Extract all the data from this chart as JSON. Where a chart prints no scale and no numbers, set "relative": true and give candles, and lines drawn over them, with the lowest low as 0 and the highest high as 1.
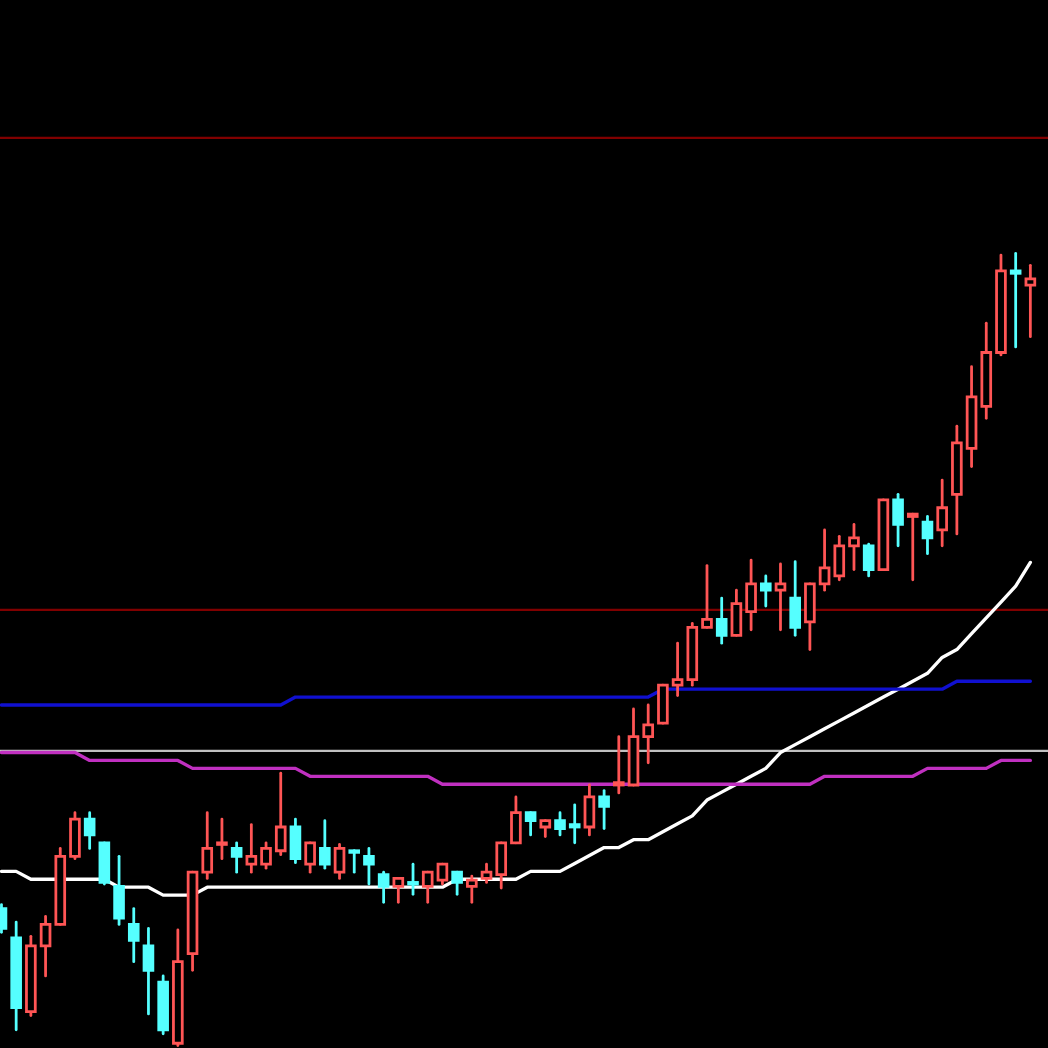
{
  "chart_data": {
    "type": "candlestick",
    "relative": true,
    "categories": [
      null,
      null,
      null,
      null,
      null,
      null,
      null,
      null,
      null,
      null,
      null,
      null,
      null,
      null,
      null,
      null,
      null,
      null,
      null,
      null,
      null,
      null,
      null,
      null,
      null,
      null,
      null,
      null,
      null,
      null,
      null,
      null,
      null,
      null,
      null,
      null,
      null,
      null,
      null,
      null,
      null,
      null,
      null,
      null,
      null,
      null,
      null,
      null,
      null,
      null,
      null,
      null,
      null,
      null,
      null,
      null,
      null,
      null,
      null,
      null,
      null,
      null,
      null,
      null,
      null,
      null,
      null,
      null,
      null,
      null,
      null
    ],
    "ohlc": [
      [
        0.173,
        0.178,
        0.143,
        0.148
      ],
      [
        0.136,
        0.156,
        0.02,
        0.048
      ],
      [
        0.043,
        0.138,
        0.038,
        0.126
      ],
      [
        0.126,
        0.163,
        0.088,
        0.153
      ],
      [
        0.153,
        0.249,
        0.153,
        0.239
      ],
      [
        0.239,
        0.294,
        0.236,
        0.286
      ],
      [
        0.286,
        0.294,
        0.249,
        0.266
      ],
      [
        0.256,
        0.256,
        0.204,
        0.206
      ],
      [
        0.201,
        0.239,
        0.153,
        0.161
      ],
      [
        0.153,
        0.173,
        0.106,
        0.133
      ],
      [
        0.126,
        0.148,
        0.04,
        0.095
      ],
      [
        0.08,
        0.088,
        0.015,
        0.02
      ],
      [
        0.003,
        0.146,
        0.0,
        0.106
      ],
      [
        0.116,
        0.219,
        0.095,
        0.219
      ],
      [
        0.219,
        0.294,
        0.211,
        0.249
      ],
      [
        0.254,
        0.286,
        0.236,
        0.256
      ],
      [
        0.249,
        0.256,
        0.219,
        0.239
      ],
      [
        0.229,
        0.279,
        0.219,
        0.239
      ],
      [
        0.229,
        0.256,
        0.224,
        0.249
      ],
      [
        0.246,
        0.344,
        0.241,
        0.276
      ],
      [
        0.276,
        0.286,
        0.231,
        0.236
      ],
      [
        0.229,
        0.256,
        0.219,
        0.256
      ],
      [
        0.249,
        0.284,
        0.224,
        0.229
      ],
      [
        0.219,
        0.254,
        0.211,
        0.249
      ],
      [
        0.246,
        0.246,
        0.219,
        0.244
      ],
      [
        0.239,
        0.249,
        0.204,
        0.229
      ],
      [
        0.216,
        0.219,
        0.181,
        0.201
      ],
      [
        0.201,
        0.211,
        0.181,
        0.211
      ],
      [
        0.206,
        0.229,
        0.191,
        0.204
      ],
      [
        0.201,
        0.219,
        0.181,
        0.219
      ],
      [
        0.209,
        0.229,
        0.204,
        0.229
      ],
      [
        0.219,
        0.219,
        0.191,
        0.206
      ],
      [
        0.201,
        0.214,
        0.181,
        0.209
      ],
      [
        0.211,
        0.229,
        0.206,
        0.219
      ],
      [
        0.216,
        0.256,
        0.199,
        0.256
      ],
      [
        0.256,
        0.314,
        0.256,
        0.294
      ],
      [
        0.294,
        0.294,
        0.266,
        0.284
      ],
      [
        0.276,
        0.284,
        0.264,
        0.284
      ],
      [
        0.284,
        0.294,
        0.266,
        0.274
      ],
      [
        0.279,
        0.304,
        0.256,
        0.276
      ],
      [
        0.276,
        0.329,
        0.266,
        0.314
      ],
      [
        0.314,
        0.322,
        0.274,
        0.302
      ],
      [
        0.329,
        0.39,
        0.319,
        0.332
      ],
      [
        0.329,
        0.425,
        0.329,
        0.39
      ],
      [
        0.39,
        0.43,
        0.357,
        0.405
      ],
      [
        0.407,
        0.455,
        0.407,
        0.455
      ],
      [
        0.455,
        0.508,
        0.442,
        0.462
      ],
      [
        0.462,
        0.533,
        0.455,
        0.528
      ],
      [
        0.528,
        0.606,
        0.528,
        0.538
      ],
      [
        0.538,
        0.565,
        0.508,
        0.518
      ],
      [
        0.518,
        0.575,
        0.518,
        0.558
      ],
      [
        0.548,
        0.613,
        0.525,
        0.583
      ],
      [
        0.583,
        0.593,
        0.555,
        0.575
      ],
      [
        0.575,
        0.608,
        0.525,
        0.583
      ],
      [
        0.565,
        0.611,
        0.518,
        0.528
      ],
      [
        0.535,
        0.583,
        0.5,
        0.583
      ],
      [
        0.583,
        0.651,
        0.575,
        0.603
      ],
      [
        0.593,
        0.643,
        0.588,
        0.631
      ],
      [
        0.631,
        0.658,
        0.601,
        0.641
      ],
      [
        0.631,
        0.633,
        0.593,
        0.601
      ],
      [
        0.601,
        0.689,
        0.601,
        0.689
      ],
      [
        0.689,
        0.696,
        0.631,
        0.658
      ],
      [
        0.668,
        0.671,
        0.588,
        0.671
      ],
      [
        0.661,
        0.668,
        0.621,
        0.641
      ],
      [
        0.651,
        0.714,
        0.631,
        0.679
      ],
      [
        0.696,
        0.782,
        0.646,
        0.761
      ],
      [
        0.754,
        0.857,
        0.731,
        0.819
      ],
      [
        0.807,
        0.912,
        0.792,
        0.875
      ],
      [
        0.875,
        0.998,
        0.872,
        0.978
      ],
      [
        0.978,
        1.0,
        0.882,
        0.975
      ],
      [
        0.96,
        0.985,
        0.895,
        0.968
      ]
    ],
    "colors": [
      "#55ffff",
      "#55ffff",
      "#ff5555",
      "#ff5555",
      "#ff5555",
      "#ff5555",
      "#55ffff",
      "#55ffff",
      "#55ffff",
      "#55ffff",
      "#55ffff",
      "#55ffff",
      "#ff5555",
      "#ff5555",
      "#ff5555",
      "#ff5555",
      "#55ffff",
      "#ff5555",
      "#ff5555",
      "#ff5555",
      "#55ffff",
      "#ff5555",
      "#55ffff",
      "#ff5555",
      "#55ffff",
      "#55ffff",
      "#55ffff",
      "#ff5555",
      "#55ffff",
      "#ff5555",
      "#ff5555",
      "#55ffff",
      "#ff5555",
      "#ff5555",
      "#ff5555",
      "#ff5555",
      "#55ffff",
      "#ff5555",
      "#55ffff",
      "#55ffff",
      "#ff5555",
      "#55ffff",
      "#ff5555",
      "#ff5555",
      "#ff5555",
      "#ff5555",
      "#ff5555",
      "#ff5555",
      "#ff5555",
      "#55ffff",
      "#ff5555",
      "#ff5555",
      "#55ffff",
      "#ff5555",
      "#55ffff",
      "#ff5555",
      "#ff5555",
      "#ff5555",
      "#ff5555",
      "#55ffff",
      "#ff5555",
      "#55ffff",
      "#ff5555",
      "#55ffff",
      "#ff5555",
      "#ff5555",
      "#ff5555",
      "#ff5555",
      "#ff5555",
      "#55ffff",
      "#ff5555"
    ],
    "series": [
      {
        "type": "line",
        "color": "#ffffff",
        "values": [
          0.22,
          0.22,
          0.21,
          0.21,
          0.21,
          0.21,
          0.21,
          0.21,
          0.2,
          0.2,
          0.2,
          0.19,
          0.19,
          0.19,
          0.2,
          0.2,
          0.2,
          0.2,
          0.2,
          0.2,
          0.2,
          0.2,
          0.2,
          0.2,
          0.2,
          0.2,
          0.2,
          0.2,
          0.2,
          0.2,
          0.2,
          0.21,
          0.21,
          0.21,
          0.21,
          0.21,
          0.22,
          0.22,
          0.22,
          0.23,
          0.24,
          0.25,
          0.25,
          0.26,
          0.26,
          0.27,
          0.28,
          0.29,
          0.31,
          0.32,
          0.33,
          0.34,
          0.35,
          0.37,
          0.38,
          0.39,
          0.4,
          0.41,
          0.42,
          0.43,
          0.44,
          0.45,
          0.46,
          0.47,
          0.49,
          0.5,
          0.52,
          0.54,
          0.56,
          0.58,
          0.61
        ]
      },
      {
        "type": "line",
        "color": "#1010d0",
        "values": [
          0.43,
          0.43,
          0.43,
          0.43,
          0.43,
          0.43,
          0.43,
          0.43,
          0.43,
          0.43,
          0.43,
          0.43,
          0.43,
          0.43,
          0.43,
          0.43,
          0.43,
          0.43,
          0.43,
          0.43,
          0.44,
          0.44,
          0.44,
          0.44,
          0.44,
          0.44,
          0.44,
          0.44,
          0.44,
          0.44,
          0.44,
          0.44,
          0.44,
          0.44,
          0.44,
          0.44,
          0.44,
          0.44,
          0.44,
          0.44,
          0.44,
          0.44,
          0.44,
          0.44,
          0.44,
          0.45,
          0.45,
          0.45,
          0.45,
          0.45,
          0.45,
          0.45,
          0.45,
          0.45,
          0.45,
          0.45,
          0.45,
          0.45,
          0.45,
          0.45,
          0.45,
          0.45,
          0.45,
          0.45,
          0.45,
          0.46,
          0.46,
          0.46,
          0.46,
          0.46,
          0.46
        ]
      },
      {
        "type": "line",
        "color": "#c030c0",
        "values": [
          0.37,
          0.37,
          0.37,
          0.37,
          0.37,
          0.37,
          0.36,
          0.36,
          0.36,
          0.36,
          0.36,
          0.36,
          0.36,
          0.35,
          0.35,
          0.35,
          0.35,
          0.35,
          0.35,
          0.35,
          0.35,
          0.34,
          0.34,
          0.34,
          0.34,
          0.34,
          0.34,
          0.34,
          0.34,
          0.34,
          0.33,
          0.33,
          0.33,
          0.33,
          0.33,
          0.33,
          0.33,
          0.33,
          0.33,
          0.33,
          0.33,
          0.33,
          0.33,
          0.33,
          0.33,
          0.33,
          0.33,
          0.33,
          0.33,
          0.33,
          0.33,
          0.33,
          0.33,
          0.33,
          0.33,
          0.33,
          0.34,
          0.34,
          0.34,
          0.34,
          0.34,
          0.34,
          0.34,
          0.35,
          0.35,
          0.35,
          0.35,
          0.35,
          0.36,
          0.36,
          0.36
        ]
      }
    ],
    "ref_lines": [
      {
        "axis": "y",
        "value": 1.146,
        "color": "#800000"
      },
      {
        "axis": "y",
        "value": 0.55,
        "color": "#800000"
      },
      {
        "axis": "y",
        "value": 0.372,
        "color": "#c0c0c0"
      }
    ]
  }
}
